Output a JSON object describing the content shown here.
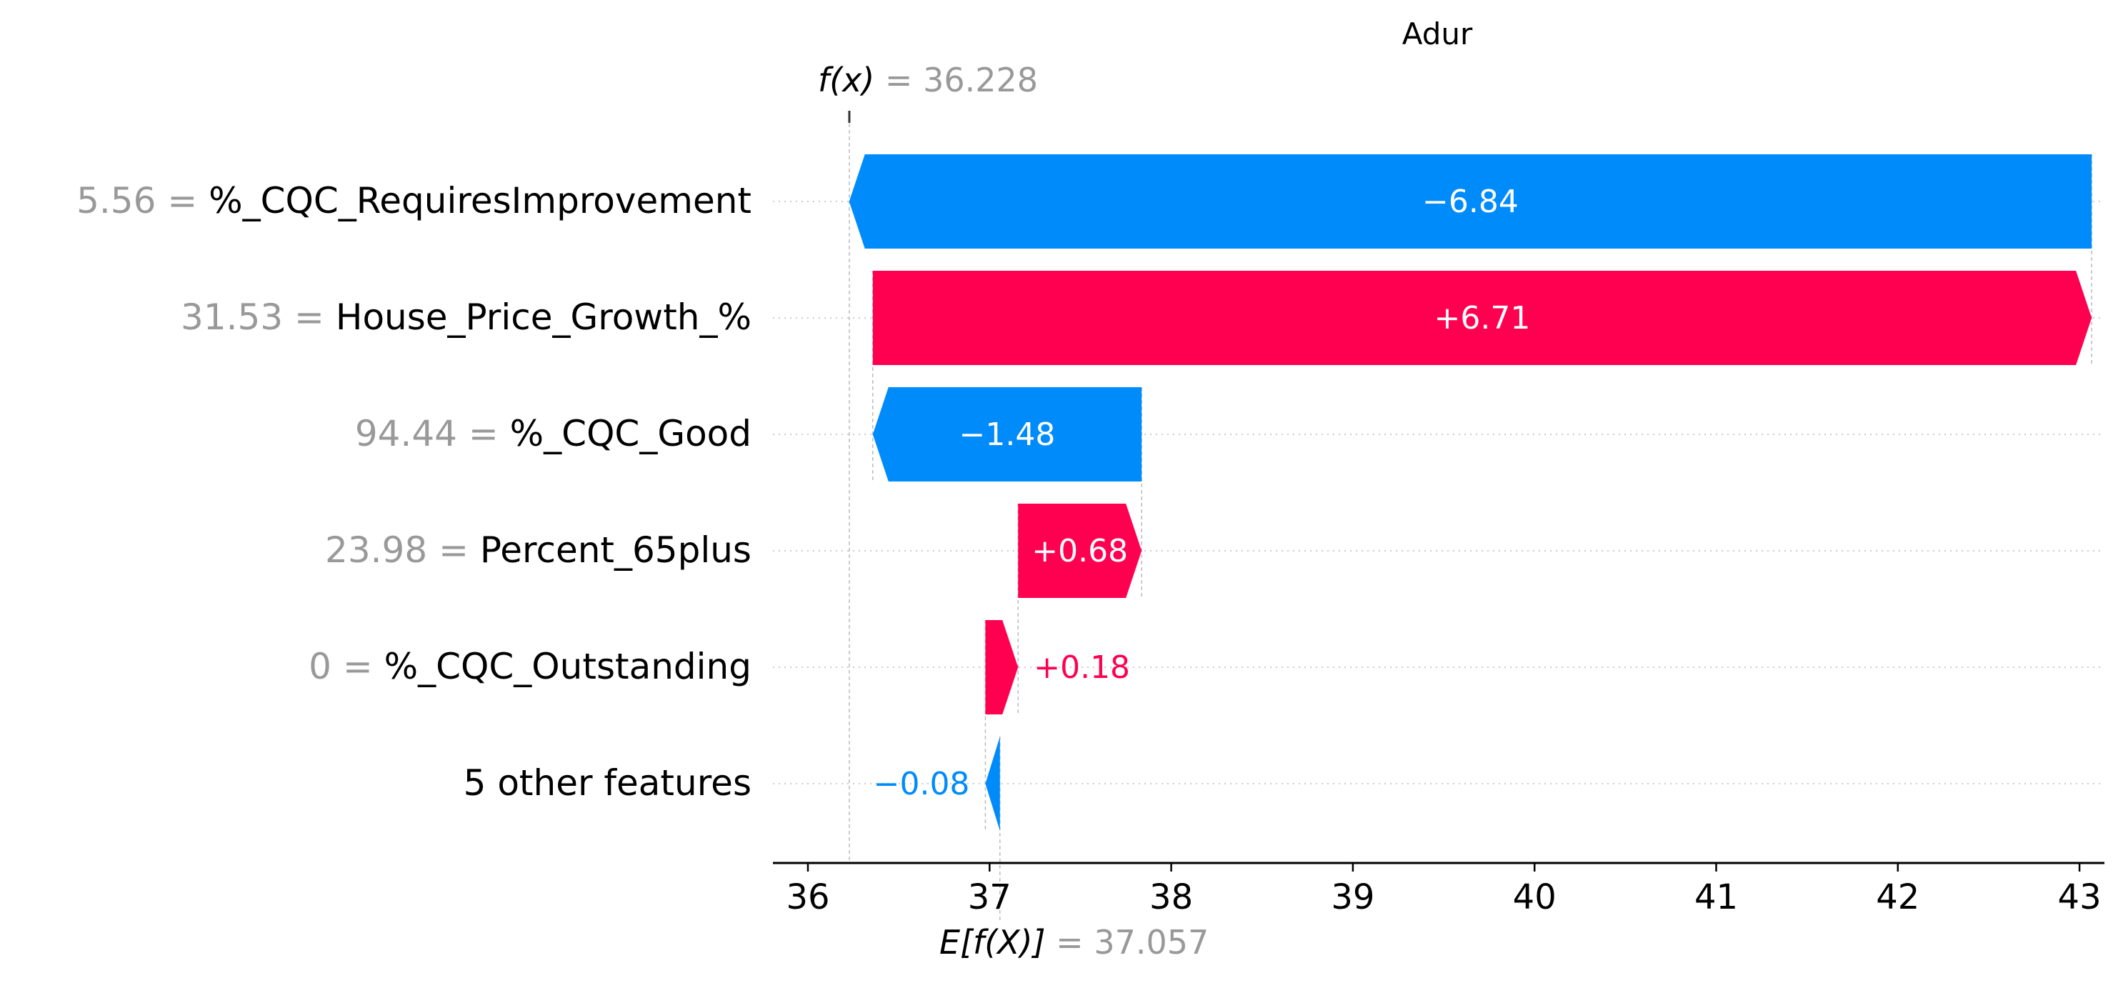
{
  "chart_data": {
    "type": "waterfall",
    "title": "Adur",
    "fx_label_prefix": "f(x)",
    "fx_label_sep": " = ",
    "fx_value_text": "36.228",
    "fx_value": 36.228,
    "efx_label_prefix": "E[f(X)]",
    "efx_label_sep": " = ",
    "efx_value_text": "37.057",
    "base_value": 37.057,
    "xlim": [
      35.8,
      43.1
    ],
    "xticks": [
      36,
      37,
      38,
      39,
      40,
      41,
      42,
      43
    ],
    "xtick_labels": [
      "36",
      "37",
      "38",
      "39",
      "40",
      "41",
      "42",
      "43"
    ],
    "grid": "dotted horizontal",
    "colors": {
      "positive": "#ff0051",
      "negative": "#008bfb"
    },
    "features": [
      {
        "value_text": "5.56 = ",
        "name": "%_CQC_RequiresImprovement",
        "shap": -6.84,
        "label": "−6.84"
      },
      {
        "value_text": "31.53 = ",
        "name": "House_Price_Growth_%",
        "shap": 6.71,
        "label": "+6.71"
      },
      {
        "value_text": "94.44 = ",
        "name": "%_CQC_Good",
        "shap": -1.48,
        "label": "−1.48"
      },
      {
        "value_text": "23.98 = ",
        "name": "Percent_65plus",
        "shap": 0.68,
        "label": "+0.68"
      },
      {
        "value_text": "0 = ",
        "name": "%_CQC_Outstanding",
        "shap": 0.18,
        "label": "+0.18"
      },
      {
        "value_text": "",
        "name": "5 other features",
        "shap": -0.08,
        "label": "−0.08"
      }
    ]
  }
}
